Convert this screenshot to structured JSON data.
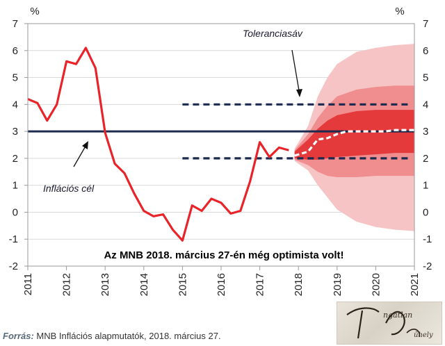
{
  "chart_data": {
    "type": "line",
    "title": "",
    "y_unit_left": "%",
    "y_unit_right": "%",
    "ylim": [
      -2,
      7
    ],
    "yticks": [
      "-2",
      "-1",
      "0",
      "1",
      "2",
      "3",
      "4",
      "5",
      "6",
      "7"
    ],
    "xlim": [
      2011,
      2021
    ],
    "xticks": [
      "2011",
      "2012",
      "2013",
      "2014",
      "2015",
      "2016",
      "2017",
      "2018",
      "2019",
      "2020",
      "2021"
    ],
    "grid": "horizontal",
    "series": [
      {
        "name": "Inflációs cél",
        "type": "constant",
        "value": 3,
        "color": "#1b2a4e"
      },
      {
        "name": "Toleranciasáv",
        "type": "dashed-band",
        "lower": 2,
        "upper": 4,
        "x_start": 2015.0,
        "color": "#1b2a4e"
      },
      {
        "name": "",
        "type": "line",
        "color": "#e8242a",
        "x": [
          2011.0,
          2011.25,
          2011.5,
          2011.75,
          2012.0,
          2012.25,
          2012.5,
          2012.75,
          2013.0,
          2013.25,
          2013.5,
          2013.75,
          2014.0,
          2014.25,
          2014.5,
          2014.75,
          2015.0,
          2015.25,
          2015.5,
          2015.75,
          2016.0,
          2016.25,
          2016.5,
          2016.75,
          2017.0,
          2017.25,
          2017.5,
          2017.75
        ],
        "values": [
          4.2,
          4.05,
          3.4,
          4.0,
          5.6,
          5.5,
          6.1,
          5.35,
          2.95,
          1.8,
          1.45,
          0.7,
          0.05,
          -0.15,
          -0.08,
          -0.65,
          -1.05,
          0.25,
          0.05,
          0.5,
          0.35,
          -0.05,
          0.05,
          1.15,
          2.6,
          2.05,
          2.4,
          2.3
        ]
      },
      {
        "name": "",
        "type": "dashed-line",
        "color": "#ffffff",
        "x": [
          2017.9,
          2018.25,
          2018.5,
          2018.75,
          2019.0,
          2019.25,
          2019.5,
          2019.75,
          2020.0,
          2020.25,
          2020.5,
          2020.75,
          2021.0
        ],
        "values": [
          2.1,
          2.25,
          2.7,
          2.75,
          2.9,
          3.0,
          3.0,
          3.0,
          3.0,
          3.0,
          3.05,
          3.05,
          3.05
        ]
      }
    ],
    "fan_bands": [
      {
        "level": "outer",
        "color": "#f6c4c4",
        "x": [
          2017.9,
          2018.25,
          2018.5,
          2018.75,
          2019.0,
          2019.5,
          2020.0,
          2020.5,
          2021.0
        ],
        "upper": [
          2.35,
          3.2,
          4.3,
          5.0,
          5.5,
          5.95,
          6.1,
          6.2,
          6.25
        ],
        "lower": [
          1.9,
          1.55,
          1.0,
          0.55,
          0.1,
          -0.35,
          -0.55,
          -0.65,
          -0.7
        ]
      },
      {
        "level": "middle",
        "color": "#ef8d8f",
        "x": [
          2017.9,
          2018.25,
          2018.5,
          2018.75,
          2019.0,
          2019.5,
          2020.0,
          2020.5,
          2021.0
        ],
        "upper": [
          2.3,
          2.9,
          3.5,
          3.95,
          4.3,
          4.55,
          4.65,
          4.7,
          4.7
        ],
        "lower": [
          1.95,
          1.75,
          1.5,
          1.35,
          1.3,
          1.3,
          1.35,
          1.35,
          1.35
        ]
      },
      {
        "level": "inner",
        "color": "#e43a3c",
        "x": [
          2017.9,
          2018.25,
          2018.5,
          2018.75,
          2019.0,
          2019.5,
          2020.0,
          2020.5,
          2021.0
        ],
        "upper": [
          2.25,
          2.7,
          3.1,
          3.4,
          3.6,
          3.75,
          3.8,
          3.8,
          3.8
        ],
        "lower": [
          2.0,
          1.95,
          1.95,
          2.0,
          2.05,
          2.1,
          2.15,
          2.2,
          2.2
        ]
      }
    ],
    "annotations": {
      "tolerance_label": "Toleranciasáv",
      "target_label": "Inflációs cél",
      "headline": "Az MNB 2018. március 27-én még optimista volt!"
    }
  },
  "footer": {
    "source_label": "Forrás:",
    "source_text": " MNB Inflációs alapmutatók, 2018. március 27."
  },
  "logo": {
    "text": "Tengatlan Műhely"
  }
}
